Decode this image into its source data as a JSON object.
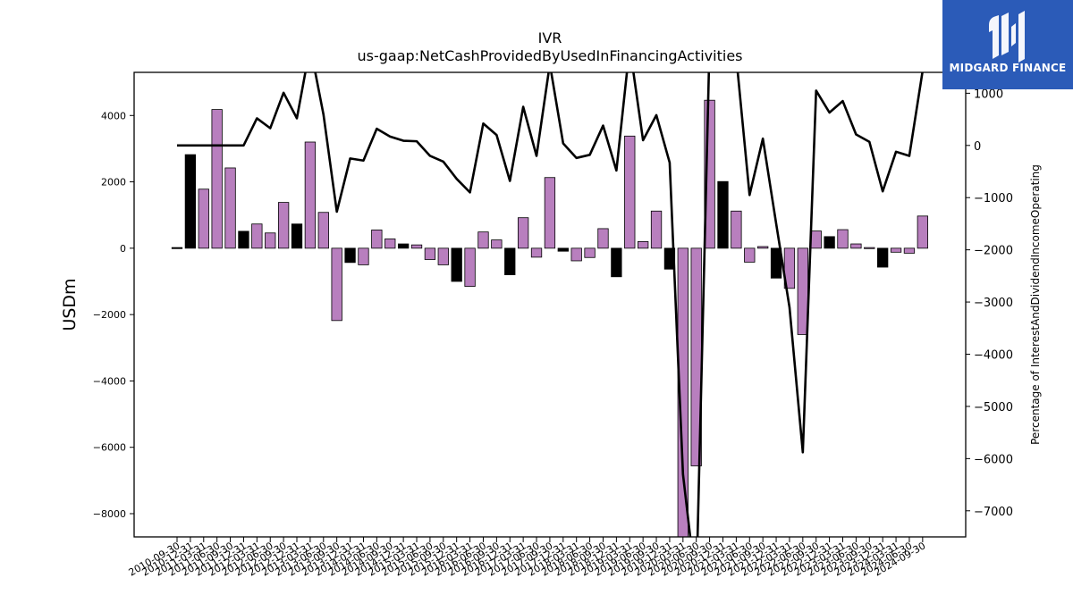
{
  "chart_data": {
    "type": "bar",
    "title": "IVR",
    "subtitle": "us-gaap:NetCashProvidedByUsedInFinancingActivities",
    "ylabel": "USDm",
    "y2label": "Percentage of InterestAndDividendIncomeOperating",
    "ylim": [
      -8700,
      5300
    ],
    "y2lim": [
      -7500,
      1400
    ],
    "yticks": [
      -8000,
      -6000,
      -4000,
      -2000,
      0,
      2000,
      4000
    ],
    "y2ticks": [
      -7000,
      -6000,
      -5000,
      -4000,
      -3000,
      -2000,
      -1000,
      0,
      1000
    ],
    "categories": [
      "2010-09-30",
      "2010-12-31",
      "2011-03-31",
      "2011-06-30",
      "2011-09-30",
      "2011-12-31",
      "2012-03-31",
      "2012-06-30",
      "2012-09-30",
      "2012-12-31",
      "2013-03-31",
      "2013-06-30",
      "2013-09-30",
      "2013-12-31",
      "2014-03-31",
      "2014-06-30",
      "2014-09-30",
      "2014-12-31",
      "2015-03-31",
      "2015-06-30",
      "2015-09-30",
      "2015-12-31",
      "2016-03-31",
      "2016-06-30",
      "2016-09-30",
      "2016-12-31",
      "2017-03-31",
      "2017-06-30",
      "2017-09-30",
      "2017-12-31",
      "2018-03-31",
      "2018-06-30",
      "2018-09-30",
      "2018-12-31",
      "2019-03-31",
      "2019-06-30",
      "2019-09-30",
      "2019-12-31",
      "2020-03-31",
      "2020-06-30",
      "2020-09-30",
      "2020-12-31",
      "2021-03-31",
      "2021-06-30",
      "2021-09-30",
      "2021-12-31",
      "2022-03-31",
      "2022-06-30",
      "2022-09-30",
      "2022-12-31",
      "2023-03-31",
      "2023-06-30",
      "2023-09-30",
      "2023-12-31",
      "2024-03-31",
      "2024-06-30",
      "2024-09-30"
    ],
    "xtick_labels": [
      "2010-09-30",
      "2010-12-31",
      "2011-03-31",
      "2011-06-30",
      "2011-09-30",
      "2011-12-31",
      "2012-03-31",
      "2012-06-30",
      "2012-09-30",
      "2012-12-31",
      "2013-03-31",
      "2013-06-30",
      "2013-09-30",
      "2013-12-31",
      "2014-03-31",
      "2014-06-30",
      "2014-09-30",
      "2014-12-31",
      "2015-03-31",
      "2015-06-30",
      "2015-09-30",
      "2015-12-31",
      "2016-03-31",
      "2016-06-30",
      "2016-09-30",
      "2016-12-31",
      "2017-03-31",
      "2017-06-30",
      "2017-09-30",
      "2017-12-31",
      "2018-03-31",
      "2018-06-30",
      "2018-09-30",
      "2018-12-31",
      "2019-03-31",
      "2019-06-30",
      "2019-09-30",
      "2019-12-31",
      "2020-03-31",
      "2020-06-30",
      "2020-09-30",
      "2020-12-31",
      "2021-03-31",
      "2021-06-30",
      "2021-09-30",
      "2021-12-31",
      "2022-03-31",
      "2022-06-30",
      "2022-09-30",
      "2022-12-31",
      "2023-03-31",
      "2023-06-30",
      "2023-09-30",
      "2023-12-31",
      "2024-03-31",
      "2024-06-30",
      "2024-09-30"
    ],
    "bar_series": {
      "values": [
        20,
        2820,
        1780,
        4180,
        2420,
        510,
        730,
        460,
        1380,
        730,
        3200,
        1080,
        -2180,
        -430,
        -500,
        550,
        280,
        130,
        100,
        -340,
        -500,
        -1000,
        -1150,
        490,
        250,
        -800,
        920,
        -270,
        2130,
        -90,
        -380,
        -280,
        590,
        -860,
        3380,
        200,
        1120,
        -630,
        -8800,
        -6560,
        4460,
        2010,
        1120,
        -420,
        50,
        -900,
        -1210,
        -2600,
        520,
        350,
        560,
        130,
        20,
        -570,
        -120,
        -150,
        970
      ],
      "colors": [
        "#000000",
        "#000000",
        "#b87fbe",
        "#b87fbe",
        "#b87fbe",
        "#000000",
        "#b87fbe",
        "#b87fbe",
        "#b87fbe",
        "#000000",
        "#b87fbe",
        "#b87fbe",
        "#b87fbe",
        "#000000",
        "#b87fbe",
        "#b87fbe",
        "#b87fbe",
        "#000000",
        "#b87fbe",
        "#b87fbe",
        "#b87fbe",
        "#000000",
        "#b87fbe",
        "#b87fbe",
        "#b87fbe",
        "#000000",
        "#b87fbe",
        "#b87fbe",
        "#b87fbe",
        "#000000",
        "#b87fbe",
        "#b87fbe",
        "#b87fbe",
        "#000000",
        "#b87fbe",
        "#b87fbe",
        "#b87fbe",
        "#000000",
        "#b87fbe",
        "#b87fbe",
        "#b87fbe",
        "#000000",
        "#b87fbe",
        "#b87fbe",
        "#b87fbe",
        "#000000",
        "#b87fbe",
        "#b87fbe",
        "#b87fbe",
        "#000000",
        "#b87fbe",
        "#b87fbe",
        "#b87fbe",
        "#000000",
        "#b87fbe",
        "#b87fbe",
        "#b87fbe"
      ]
    },
    "line_series": {
      "color": "#000000",
      "values": [
        0,
        0,
        0,
        0,
        0,
        0,
        520,
        330,
        1010,
        520,
        1900,
        590,
        -1270,
        -250,
        -290,
        320,
        170,
        90,
        80,
        -200,
        -310,
        -640,
        -900,
        420,
        200,
        -680,
        740,
        -200,
        1560,
        40,
        -240,
        -180,
        380,
        -480,
        1900,
        100,
        580,
        -330,
        -6300,
        -8500,
        2000,
        2100,
        1700,
        -950,
        130,
        -1500,
        -3100,
        -5880,
        1050,
        630,
        850,
        210,
        70,
        -880,
        -120,
        -200,
        1430
      ]
    },
    "legend": "none",
    "grid": false
  },
  "logo": {
    "brand_text": "MIDGARD FINANCE",
    "icon": "midgard-logo-icon",
    "background": "#2b5bb8"
  }
}
